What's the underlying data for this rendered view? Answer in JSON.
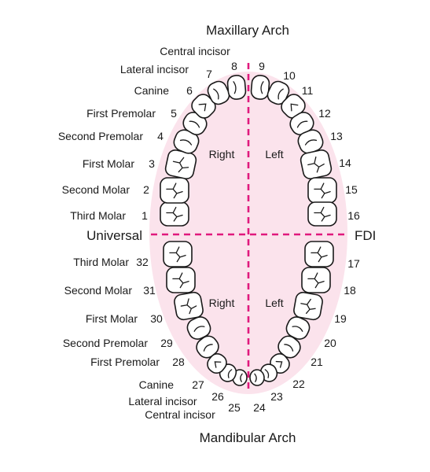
{
  "arch_labels": {
    "upper": "Maxillary Arch",
    "lower": "Mandibular Arch"
  },
  "system_labels": {
    "left": "Universal",
    "right": "FDI"
  },
  "side_labels": {
    "upper_right": "Right",
    "upper_left": "Left",
    "lower_right": "Right",
    "lower_left": "Left"
  },
  "tooth_types": {
    "central": "Central incisor",
    "lateral": "Lateral incisor",
    "canine": "Canine",
    "first_premolar": "First Premolar",
    "second_premolar": "Second Premolar",
    "first_molar": "First Molar",
    "second_molar": "Second Molar",
    "third_molar": "Third Molar"
  },
  "upper_numbers": [
    "1",
    "2",
    "3",
    "4",
    "5",
    "6",
    "7",
    "8",
    "9",
    "10",
    "11",
    "12",
    "13",
    "14",
    "15",
    "16"
  ],
  "lower_numbers": [
    "17",
    "18",
    "19",
    "20",
    "21",
    "22",
    "23",
    "24",
    "25",
    "26",
    "27",
    "28",
    "29",
    "30",
    "31",
    "32"
  ],
  "colors": {
    "arch_fill": "#fbe3ec",
    "axis": "#e0197d",
    "outline": "#1a1a1a"
  }
}
